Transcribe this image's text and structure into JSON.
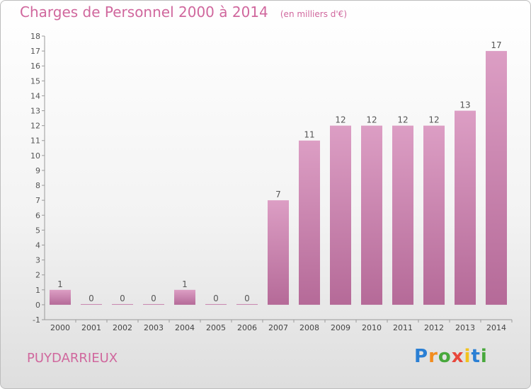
{
  "chart_data": {
    "type": "bar",
    "title": "Charges de Personnel 2000 à 2014",
    "subtitle": "(en milliers d'€)",
    "categories": [
      "2000",
      "2001",
      "2002",
      "2003",
      "2004",
      "2005",
      "2006",
      "2007",
      "2008",
      "2009",
      "2010",
      "2011",
      "2012",
      "2013",
      "2014"
    ],
    "values": [
      1,
      0,
      0,
      0,
      1,
      0,
      0,
      7,
      11,
      12,
      12,
      12,
      12,
      13,
      17
    ],
    "ylim": [
      -1,
      18
    ],
    "yticks": [
      -1,
      0,
      1,
      2,
      3,
      4,
      5,
      6,
      7,
      8,
      9,
      10,
      11,
      12,
      13,
      14,
      15,
      16,
      17,
      18
    ],
    "data_labels": true,
    "grid": false,
    "bar_color": "#dc9ec4",
    "bar_color_dark": "#b56a98"
  },
  "footer": {
    "commune": "PUYDARRIEUX",
    "logo_letters": [
      "P",
      "r",
      "o",
      "x",
      "i",
      "t",
      "i"
    ],
    "logo_colors": [
      "#2a7fd4",
      "#f28c1e",
      "#48a83c",
      "#e8473c",
      "#f2c21e",
      "#2a7fd4",
      "#48a83c"
    ]
  },
  "colors": {
    "title": "#d0679d"
  }
}
